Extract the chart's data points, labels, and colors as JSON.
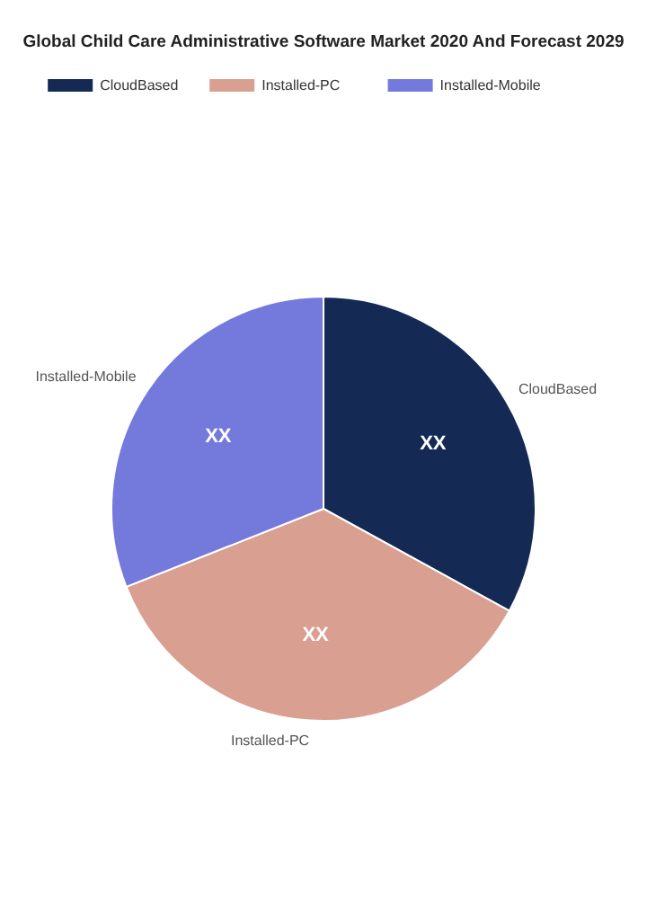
{
  "chart_data": {
    "type": "pie",
    "title": "Global Child Care Administrative Software Market 2020 And Forecast 2029",
    "categories": [
      "CloudBased",
      "Installed-PC",
      "Installed-Mobile"
    ],
    "values": [
      33,
      36,
      31
    ],
    "colors": [
      "#142a54",
      "#d99f91",
      "#7479dc"
    ],
    "value_labels": [
      "XX",
      "XX",
      "XX"
    ],
    "legend": "top"
  }
}
